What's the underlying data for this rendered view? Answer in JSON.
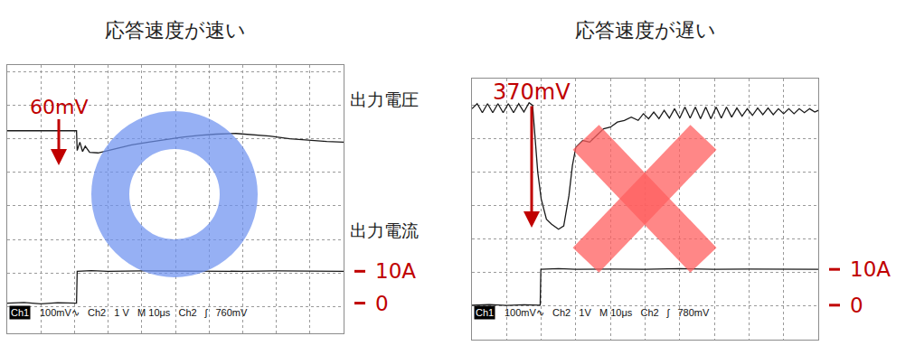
{
  "chart_data": [
    {
      "type": "line",
      "title": "応答速度が速い",
      "xlim": [
        0,
        100
      ],
      "xticks": [
        0,
        10,
        20,
        30,
        40,
        50,
        60,
        70,
        80,
        90,
        100
      ],
      "ylim": [
        -3.8,
        4.2
      ],
      "yticks": [
        -3,
        -2,
        -1,
        0,
        1,
        2,
        3,
        4
      ],
      "grid": true,
      "tick_labels": false,
      "series": [
        {
          "name": "出力電圧",
          "color": "#1a1a1a",
          "x": [
            0,
            20.6,
            20.8,
            21.6,
            22.4,
            23.2,
            24.5,
            27,
            32,
            37,
            42,
            47,
            52,
            57,
            62,
            68,
            73,
            78,
            84,
            90,
            95,
            100
          ],
          "values": [
            2.24,
            2.24,
            1.65,
            1.9,
            1.62,
            1.78,
            1.6,
            1.58,
            1.7,
            1.82,
            1.9,
            1.98,
            2.05,
            2.1,
            2.14,
            2.16,
            2.12,
            2.08,
            2.0,
            1.95,
            1.92,
            1.9
          ]
        },
        {
          "name": "出力電流",
          "color": "#1a1a1a",
          "x": [
            0,
            5,
            10,
            15,
            20.6,
            20.8,
            25,
            30,
            40,
            50,
            60,
            70,
            80,
            90,
            100
          ],
          "values": [
            -2.9,
            -2.88,
            -2.92,
            -2.89,
            -2.9,
            -1.95,
            -1.93,
            -1.95,
            -1.94,
            -1.95,
            -1.94,
            -1.95,
            -1.94,
            -1.95,
            -1.95
          ]
        }
      ],
      "levels": [
        {
          "value": -1.95,
          "label": "10A"
        },
        {
          "value": -2.9,
          "label": "0"
        }
      ],
      "annotations": [
        "60mV"
      ],
      "status": [
        "Ch1",
        "100mV∿",
        "Ch2",
        "1 V",
        "M 10μs",
        "Ch2",
        "ʃ",
        "760mV"
      ]
    },
    {
      "type": "line",
      "title": "応答速度が遅い",
      "xlim": [
        0,
        100
      ],
      "xticks": [
        0,
        10,
        20,
        30,
        40,
        50,
        60,
        70,
        80,
        90,
        100
      ],
      "ylim": [
        -4,
        3.8
      ],
      "yticks": [
        -4,
        -3,
        -2,
        -1,
        0,
        1,
        2,
        3
      ],
      "grid": true,
      "tick_labels": false,
      "series": [
        {
          "color": "#1a1a1a",
          "x": [
            0,
            1.5,
            3,
            4.5,
            6,
            7.5,
            9,
            10.5,
            12,
            13.5,
            15,
            16.5,
            17.5,
            18.2,
            19,
            20,
            21.5,
            23,
            25,
            26.5,
            28,
            29,
            30,
            32,
            34,
            36,
            38,
            40,
            42,
            44,
            46,
            48,
            49.5,
            51,
            52.5,
            54,
            55.5,
            57,
            58.5,
            60,
            61.5,
            63,
            64.5,
            66,
            67.5,
            69,
            70.5,
            72,
            73.5,
            75,
            76.5,
            78,
            79.5,
            81,
            82.5,
            84,
            85.5,
            87,
            88.5,
            90,
            91.5,
            93,
            94.5,
            96,
            97.5,
            99,
            100
          ],
          "values": [
            2.9,
            3.05,
            2.78,
            3.05,
            2.78,
            3.05,
            2.78,
            3.05,
            2.78,
            3.05,
            2.8,
            3.08,
            3.0,
            2.0,
            1.0,
            0.2,
            -0.4,
            -0.55,
            -0.7,
            -0.6,
            0.3,
            1.2,
            1.75,
            1.95,
            1.9,
            2.1,
            2.3,
            2.35,
            2.5,
            2.55,
            2.65,
            2.55,
            2.75,
            2.6,
            2.8,
            2.6,
            2.85,
            2.62,
            2.9,
            2.62,
            2.95,
            2.62,
            2.95,
            2.6,
            2.95,
            2.6,
            2.95,
            2.62,
            2.95,
            2.65,
            2.92,
            2.68,
            2.9,
            2.7,
            2.92,
            2.72,
            2.92,
            2.72,
            2.9,
            2.75,
            2.9,
            2.75,
            2.9,
            2.78,
            2.9,
            2.8,
            2.85
          ]
        },
        {
          "color": "#1a1a1a",
          "x": [
            0,
            5,
            10,
            15,
            19.7,
            19.9,
            25,
            30,
            40,
            50,
            60,
            70,
            80,
            90,
            100
          ],
          "values": [
            -2.97,
            -2.95,
            -2.98,
            -2.96,
            -2.97,
            -1.9,
            -1.88,
            -1.9,
            -1.89,
            -1.9,
            -1.88,
            -1.9,
            -1.89,
            -1.9,
            -1.9
          ]
        }
      ],
      "levels": [
        {
          "value": -1.9,
          "label": "10A"
        },
        {
          "value": -2.97,
          "label": "0"
        }
      ],
      "annotations": [
        "370mV"
      ],
      "status": [
        "Ch1",
        "100mV∿",
        "Ch2",
        "1V",
        "M 10μs",
        "Ch2",
        "ʃ",
        "780mV"
      ]
    }
  ]
}
